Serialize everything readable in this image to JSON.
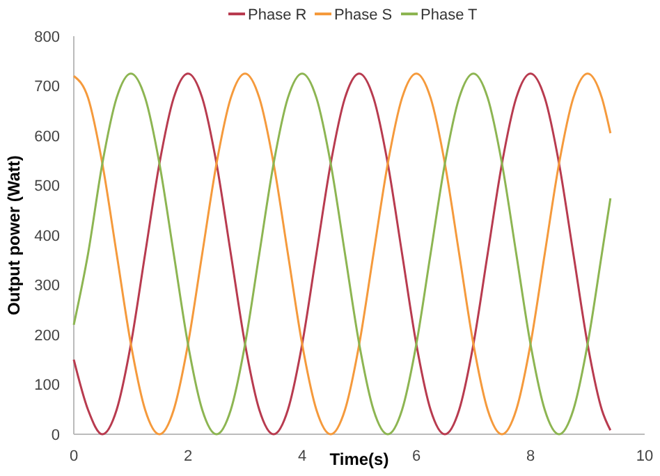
{
  "chart_data": {
    "type": "line",
    "xlabel": "Time(s)",
    "ylabel": "Output power (Watt)",
    "x": [
      0,
      0.25,
      0.5,
      0.75,
      1,
      1.25,
      1.5,
      1.75,
      2,
      2.25,
      2.5,
      2.75,
      3,
      3.25,
      3.5,
      3.75,
      4,
      4.25,
      4.5,
      4.75,
      5,
      5.25,
      5.5,
      5.75,
      6,
      6.25,
      6.5,
      6.75,
      7,
      7.25,
      7.5,
      7.75,
      8,
      8.25,
      8.5,
      8.75,
      9,
      9.25,
      9.4
    ],
    "series": [
      {
        "name": "Phase R",
        "color": "#b83b4f",
        "values": [
          150,
          49,
          0,
          49,
          181,
          363,
          544,
          676,
          725,
          676,
          544,
          363,
          181,
          49,
          0,
          49,
          181,
          363,
          544,
          676,
          725,
          676,
          544,
          363,
          181,
          49,
          0,
          49,
          181,
          363,
          544,
          676,
          725,
          676,
          544,
          363,
          181,
          49,
          8
        ]
      },
      {
        "name": "Phase S",
        "color": "#f59a3c",
        "values": [
          720,
          676,
          544,
          363,
          181,
          49,
          0,
          49,
          181,
          363,
          544,
          676,
          725,
          676,
          544,
          363,
          181,
          49,
          0,
          49,
          181,
          363,
          544,
          676,
          725,
          676,
          544,
          363,
          181,
          49,
          0,
          49,
          181,
          363,
          544,
          676,
          725,
          676,
          605
        ]
      },
      {
        "name": "Phase T",
        "color": "#8db552",
        "values": [
          220,
          363,
          544,
          676,
          725,
          676,
          544,
          363,
          181,
          49,
          0,
          49,
          181,
          363,
          544,
          676,
          725,
          676,
          544,
          363,
          181,
          49,
          0,
          49,
          181,
          363,
          544,
          676,
          725,
          676,
          544,
          363,
          181,
          49,
          0,
          49,
          181,
          363,
          474
        ]
      }
    ],
    "xlim": [
      0,
      10
    ],
    "xticks": [
      0,
      2,
      4,
      6,
      8,
      10
    ],
    "ylim": [
      0,
      800
    ],
    "yticks": [
      0,
      100,
      200,
      300,
      400,
      500,
      600,
      700,
      800
    ],
    "grid": false,
    "legend": "top",
    "marker": "none",
    "line_style": "solid"
  }
}
